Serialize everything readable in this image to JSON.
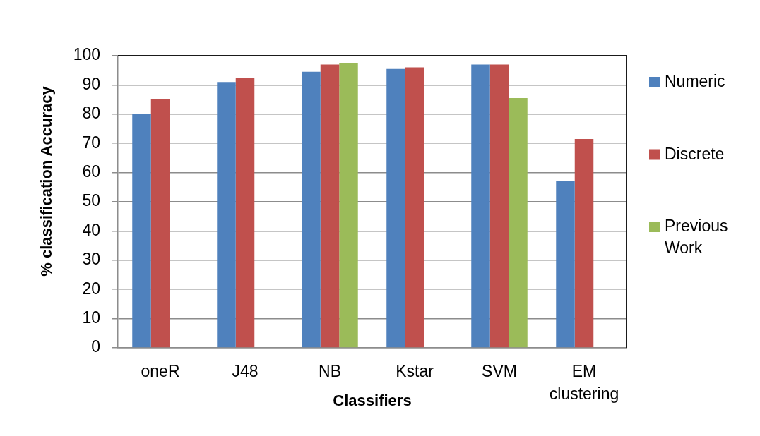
{
  "chart_data": {
    "type": "bar",
    "xlabel": "Classifiers",
    "ylabel": "% classification Accuracy",
    "categories": [
      "oneR",
      "J48",
      "NB",
      "Kstar",
      "SVM",
      "EM clustering"
    ],
    "series": [
      {
        "name": "Numeric",
        "color": "#4f81bd",
        "values": [
          80,
          91,
          94.5,
          95.5,
          97,
          57
        ]
      },
      {
        "name": "Discrete",
        "color": "#c0504d",
        "values": [
          85,
          92.5,
          97,
          96,
          97,
          71.5
        ]
      },
      {
        "name": "Previous Work",
        "color": "#9bbb59",
        "values": [
          null,
          null,
          97.5,
          null,
          85.5,
          null
        ]
      }
    ],
    "ylim": [
      0,
      100
    ],
    "yticks": [
      0,
      10,
      20,
      30,
      40,
      50,
      60,
      70,
      80,
      90,
      100
    ],
    "grid": "y",
    "legend": "right"
  }
}
